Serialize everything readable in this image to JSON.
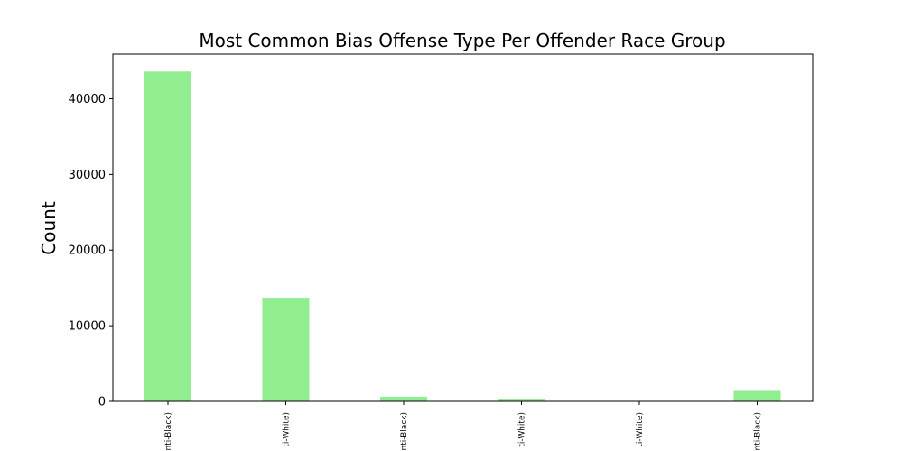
{
  "chart_data": {
    "type": "bar",
    "title": "Most Common Bias Offense Type Per Offender Race Group",
    "ylabel": "Count",
    "xlabel": "",
    "categories": [
      "nti-Black)",
      "ti-White)",
      "nti-Black)",
      "ti-White)",
      "ti-White)",
      "nti-Black)"
    ],
    "values": [
      43600,
      13700,
      600,
      350,
      0,
      1500
    ],
    "ylim": [
      0,
      45900
    ],
    "yticks": [
      0,
      10000,
      20000,
      30000,
      40000
    ],
    "bar_color": "#90ee90",
    "grid": false,
    "legend": "none"
  }
}
